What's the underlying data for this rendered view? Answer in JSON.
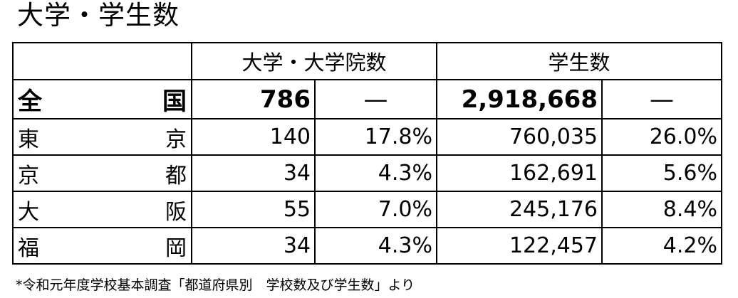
{
  "title": "大学・学生数",
  "table": {
    "header": {
      "corner": "",
      "universities": "大学・大学院数",
      "students": "学生数"
    },
    "total": {
      "pref_left": "全",
      "pref_right": "国",
      "univ_count": "786",
      "univ_share": "—",
      "student_count": "2,918,668",
      "student_share": "—"
    },
    "rows": [
      {
        "pref_left": "東",
        "pref_right": "京",
        "univ_count": "140",
        "univ_share": "17.8%",
        "student_count": "760,035",
        "student_share": "26.0%"
      },
      {
        "pref_left": "京",
        "pref_right": "都",
        "univ_count": "34",
        "univ_share": "4.3%",
        "student_count": "162,691",
        "student_share": "5.6%"
      },
      {
        "pref_left": "大",
        "pref_right": "阪",
        "univ_count": "55",
        "univ_share": "7.0%",
        "student_count": "245,176",
        "student_share": "8.4%"
      },
      {
        "pref_left": "福",
        "pref_right": "岡",
        "univ_count": "34",
        "univ_share": "4.3%",
        "student_count": "122,457",
        "student_share": "4.2%"
      }
    ]
  },
  "footnote": "*令和元年度学校基本調査「都道府県別　学校数及び学生数」より"
}
